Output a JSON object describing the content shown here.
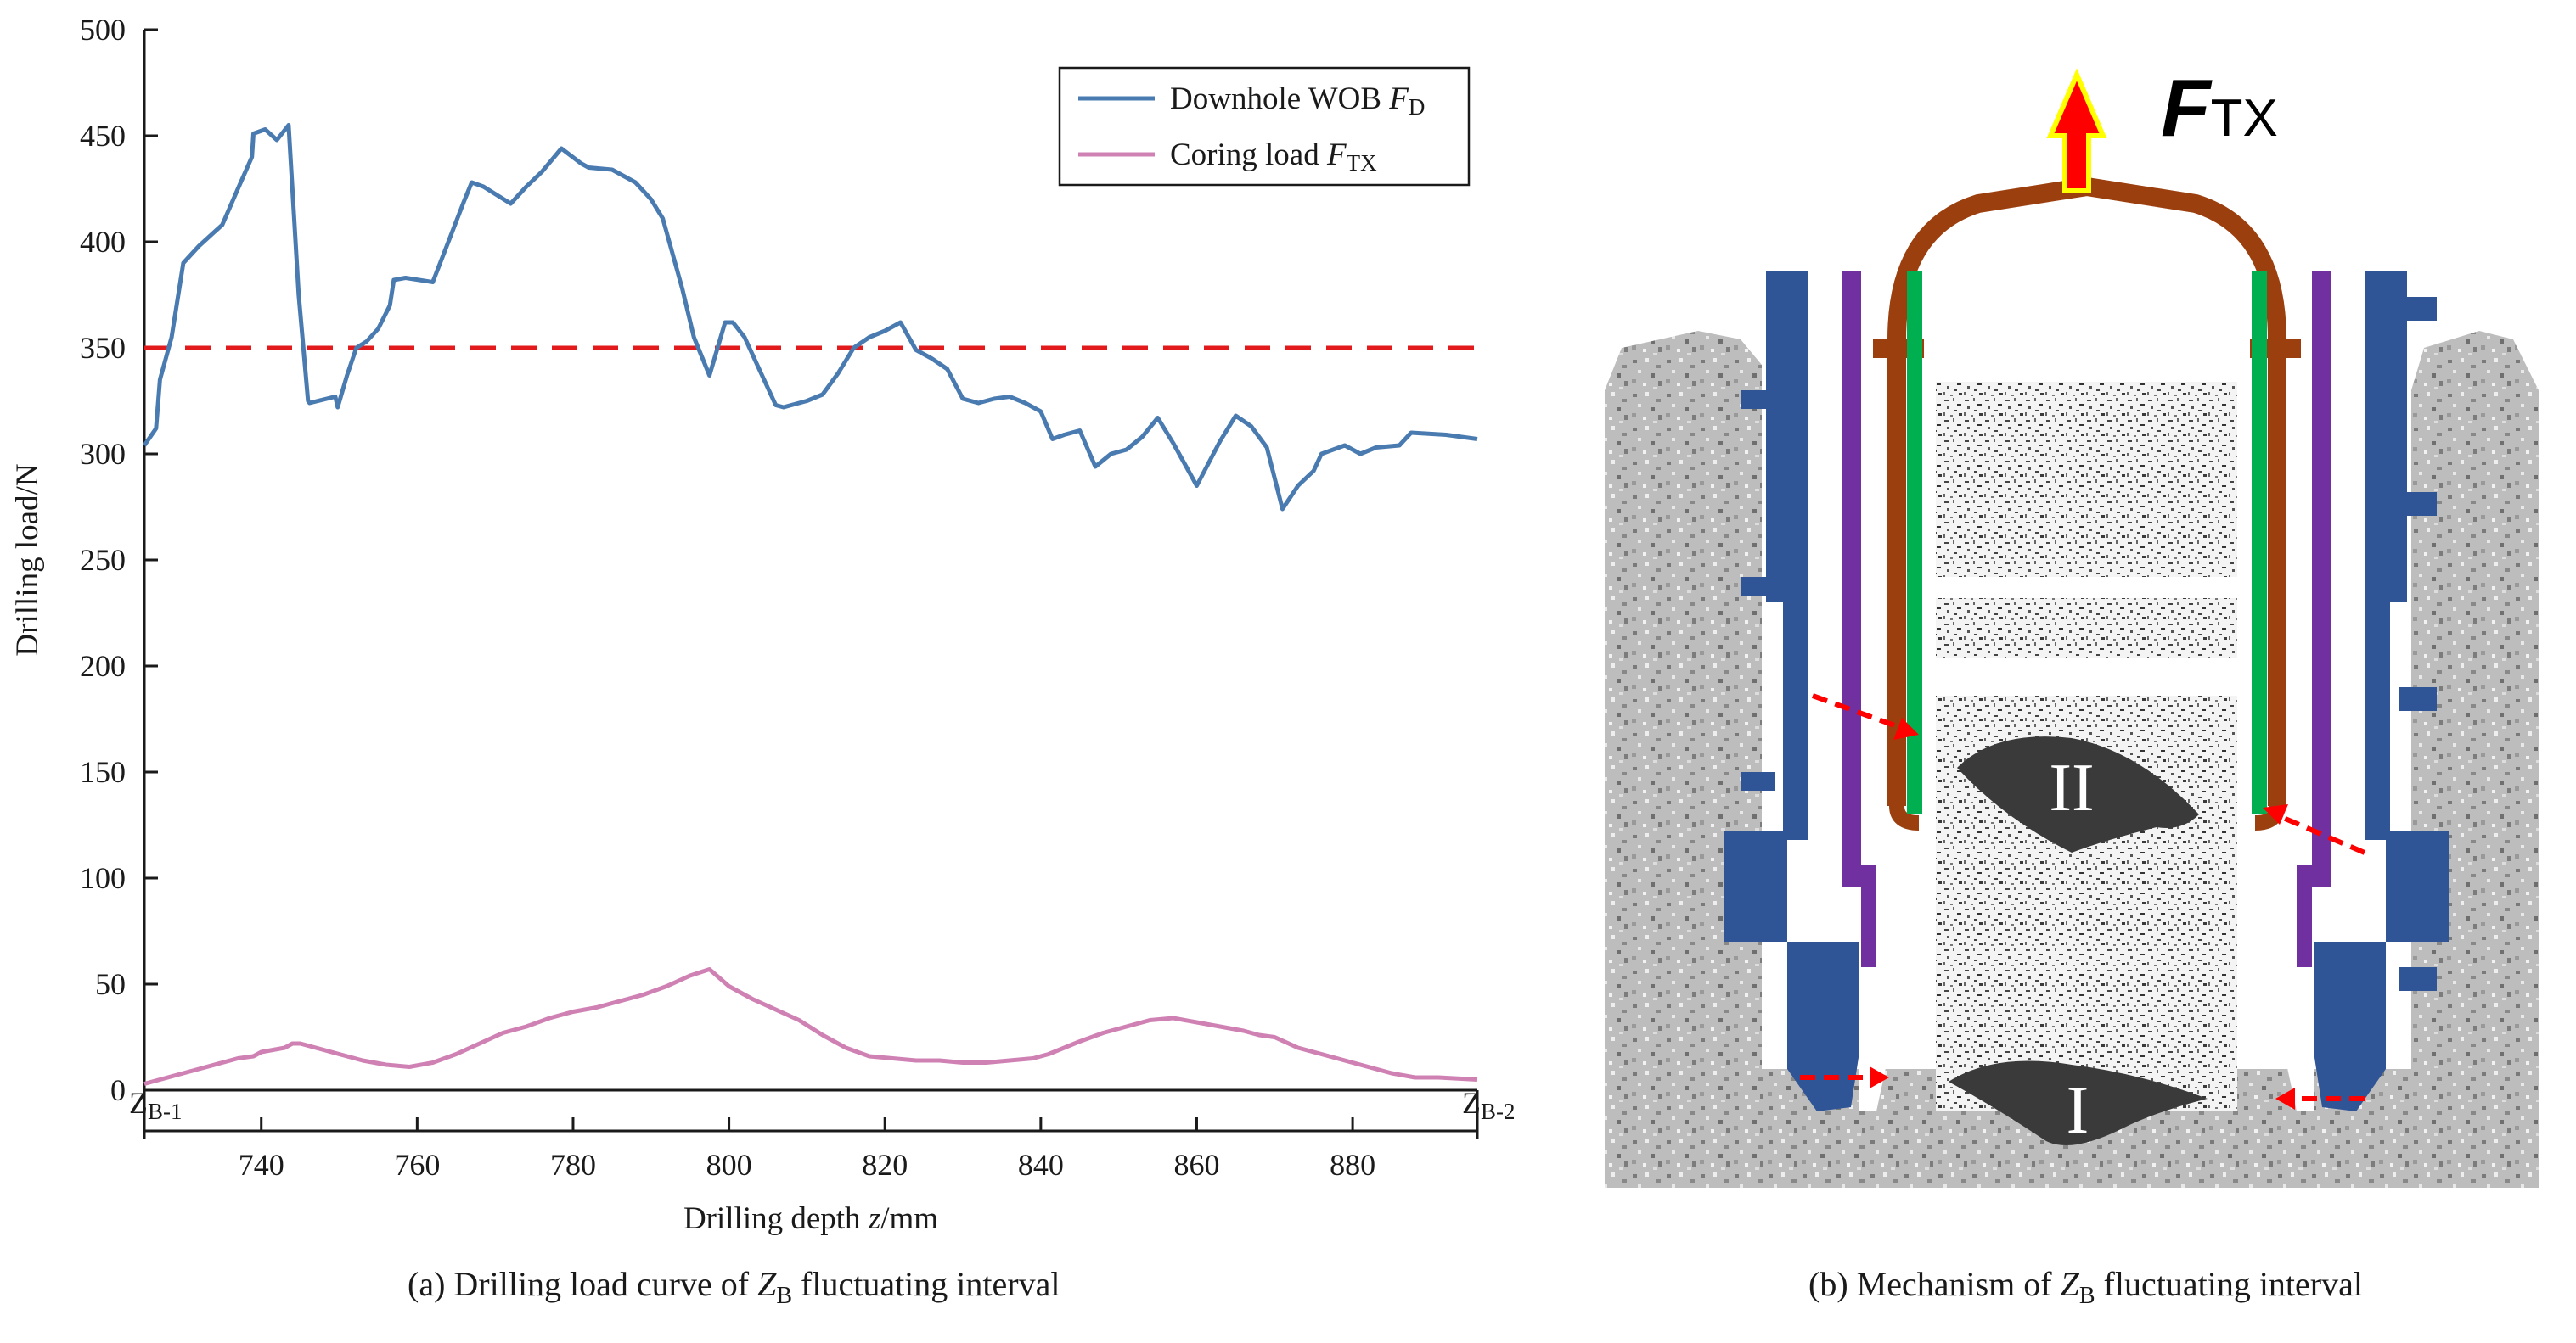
{
  "chart_data": {
    "type": "line",
    "title": "",
    "xlabel_prefix": "Drilling depth ",
    "xlabel_var": "z",
    "xlabel_suffix": "/mm",
    "ylabel": "Drilling load/N",
    "xlim": [
      725,
      896
    ],
    "ylim": [
      0,
      500
    ],
    "xticks": [
      740,
      760,
      780,
      800,
      820,
      840,
      860,
      880
    ],
    "yticks": [
      0,
      50,
      100,
      150,
      200,
      250,
      300,
      350,
      400,
      450,
      500
    ],
    "zone_start_label": "Z",
    "zone_start_sub": "B-1",
    "zone_end_label": "Z",
    "zone_end_sub": "B-2",
    "threshold": {
      "y": 350,
      "style": "dashed",
      "color": "#e31a1c"
    },
    "legend_position": "top-right",
    "series": [
      {
        "name": "Downhole WOB",
        "legend_prefix": "Downhole WOB ",
        "legend_var": "F",
        "legend_sub": "D",
        "color": "#4a7bb0",
        "x": [
          725,
          726.5,
          727,
          728.5,
          730,
          732,
          735,
          737,
          738.8,
          739,
          740.5,
          742,
          743.5,
          744.8,
          746,
          746.2,
          749.5,
          749.8,
          751,
          752.2,
          753.5,
          755,
          756.5,
          757,
          758.5,
          762,
          764,
          766,
          767,
          768.5,
          772,
          774,
          776,
          778.5,
          781,
          782,
          785,
          788,
          790,
          791.5,
          794,
          795.5,
          797.5,
          799.5,
          800.5,
          802,
          803.5,
          806,
          807,
          808,
          810,
          812,
          814,
          816,
          818,
          820,
          822,
          824,
          826,
          828,
          830,
          832,
          834,
          836,
          838,
          840,
          841.5,
          843,
          845,
          847,
          849,
          851,
          853,
          855,
          857,
          860,
          863,
          865,
          867,
          869,
          871,
          873,
          875,
          876,
          879,
          881,
          883,
          886,
          887.5,
          892,
          896
        ],
        "y": [
          304,
          312,
          335,
          355,
          390,
          398,
          408,
          425,
          440,
          451,
          453,
          448,
          455,
          375,
          325,
          324,
          327,
          322,
          337,
          350,
          353,
          359,
          370,
          382,
          383,
          381,
          400,
          419,
          428,
          426,
          418,
          426,
          433,
          444,
          437,
          435,
          434,
          428,
          420,
          411,
          378,
          355,
          337,
          362,
          362,
          355,
          343,
          323,
          322,
          323,
          325,
          328,
          338,
          350,
          355,
          358,
          362,
          349,
          345,
          340,
          326,
          324,
          326,
          327,
          324,
          320,
          307,
          309,
          311,
          294,
          300,
          302,
          308,
          317,
          305,
          285,
          306,
          318,
          313,
          303,
          274,
          285,
          292,
          300,
          304,
          300,
          303,
          304,
          310,
          309,
          307
        ]
      },
      {
        "name": "Coring load",
        "legend_prefix": "Coring load ",
        "legend_var": "F",
        "legend_sub": "TX",
        "color": "#cf81b4",
        "x": [
          725,
          727,
          729,
          732,
          735,
          737,
          739,
          740,
          743,
          744,
          745,
          746,
          747,
          748,
          750,
          753,
          756,
          759,
          762,
          765,
          768,
          771,
          774,
          777,
          780,
          783,
          786,
          789,
          792,
          795,
          797.5,
          800,
          803,
          806,
          809,
          812,
          815,
          818,
          821,
          824,
          827,
          830,
          833,
          836,
          839,
          841,
          843,
          845,
          848,
          851,
          854,
          857,
          860,
          863,
          866,
          868,
          870,
          873,
          876,
          879,
          882,
          885,
          888,
          891,
          896
        ],
        "y": [
          3,
          5,
          7,
          10,
          13,
          15,
          16,
          18,
          20,
          22,
          22,
          21,
          20,
          19,
          17,
          14,
          12,
          11,
          13,
          17,
          22,
          27,
          30,
          34,
          37,
          39,
          42,
          45,
          49,
          54,
          57,
          49,
          43,
          38,
          33,
          26,
          20,
          16,
          15,
          14,
          14,
          13,
          13,
          14,
          15,
          17,
          20,
          23,
          27,
          30,
          33,
          34,
          32,
          30,
          28,
          26,
          25,
          20,
          17,
          14,
          11,
          8,
          6,
          6,
          5
        ]
      }
    ]
  },
  "captions": {
    "left_prefix": "(a) Drilling load curve of ",
    "left_var": "Z",
    "left_sub": "B",
    "left_suffix": " fluctuating interval",
    "right_prefix": "(b) Mechanism of ",
    "right_var": "Z",
    "right_sub": "B",
    "right_suffix": " fluctuating interval"
  },
  "mechanism": {
    "force_label": "F",
    "force_sub": "TX",
    "zone_upper": "II",
    "zone_lower": "I",
    "colors": {
      "drill_body": "#2f5597",
      "inner_tube": "#7030a0",
      "green_tube": "#00b050",
      "liner": "#9c3f0e",
      "arrow": "#ff0000",
      "arrow_outline": "#ffff00",
      "inclusion": "#3a3a3a",
      "rock": "#b8b8b8"
    }
  }
}
